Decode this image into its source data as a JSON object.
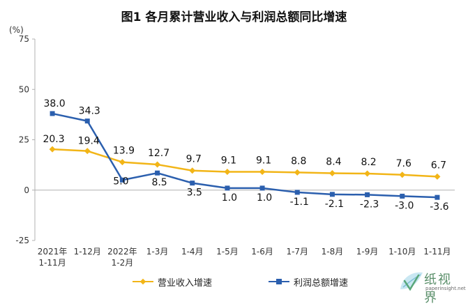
{
  "chart_data": {
    "type": "line",
    "title": "图1  各月累计营业收入与利润总额同比增速",
    "ylabel": "(%)",
    "xlabel": "",
    "ylim": [
      -25,
      75
    ],
    "yticks": [
      75,
      50,
      25,
      0,
      -25
    ],
    "categories": [
      [
        "2021年",
        "1-11月"
      ],
      [
        "1-12月"
      ],
      [
        "2022年",
        "1-2月"
      ],
      [
        "1-3月"
      ],
      [
        "1-4月"
      ],
      [
        "1-5月"
      ],
      [
        "1-6月"
      ],
      [
        "1-7月"
      ],
      [
        "1-8月"
      ],
      [
        "1-9月"
      ],
      [
        "1-10月"
      ],
      [
        "1-11月"
      ]
    ],
    "grid": false,
    "legend_position": "bottom",
    "series": [
      {
        "name": "营业收入增速",
        "color": "#f2b517",
        "marker": "diamond",
        "values": [
          20.3,
          19.4,
          13.9,
          12.7,
          9.7,
          9.1,
          9.1,
          8.8,
          8.4,
          8.2,
          7.6,
          6.7
        ],
        "labels": [
          "20.3",
          "19.4",
          "13.9",
          "12.7",
          "9.7",
          "9.1",
          "9.1",
          "8.8",
          "8.4",
          "8.2",
          "7.6",
          "6.7"
        ]
      },
      {
        "name": "利润总额增速",
        "color": "#2b5fae",
        "marker": "square",
        "values": [
          38.0,
          34.3,
          5.0,
          8.5,
          3.5,
          1.0,
          1.0,
          -1.1,
          -2.1,
          -2.3,
          -3.0,
          -3.6
        ],
        "labels": [
          "38.0",
          "34.3",
          "5.0",
          "8.5",
          "3.5",
          "1.0",
          "1.0",
          "-1.1",
          "-2.1",
          "-2.3",
          "-3.0",
          "-3.6"
        ]
      }
    ]
  },
  "watermark": {
    "text_cn": "纸视界",
    "text_en": "paperinsight.net"
  }
}
